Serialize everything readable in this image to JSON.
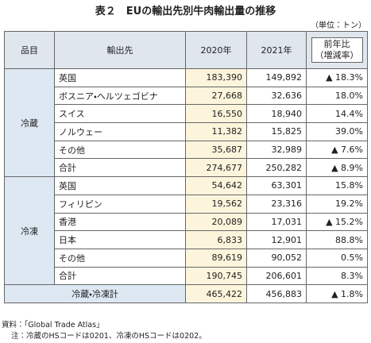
{
  "title": "表２　EUの輸出先別牛肉輸出量の推移",
  "unit": "（単位：トン）",
  "table": {
    "header": [
      "品目",
      "輸出先",
      "2020年",
      "2021年",
      [
        "前年比",
        "（増減率）"
      ]
    ],
    "groups": [
      {
        "name": "冷蔵",
        "rows": [
          [
            "英国",
            "183,390",
            "149,892",
            "▲ 18.3%"
          ],
          [
            "ボスニア・ヘルツェゴビナ",
            "27,668",
            "32,636",
            "18.0%"
          ],
          [
            "スイス",
            "16,550",
            "18,940",
            "14.4%"
          ],
          [
            "ノルウェー",
            "11,382",
            "15,825",
            "39.0%"
          ],
          [
            "その他",
            "35,687",
            "32,989",
            "▲ 7.6%"
          ],
          [
            "合計",
            "274,677",
            "250,282",
            "▲ 8.9%"
          ]
        ]
      },
      {
        "name": "冷凍",
        "rows": [
          [
            "英国",
            "54,642",
            "63,301",
            "15.8%"
          ],
          [
            "フィリピン",
            "19,562",
            "23,316",
            "19.2%"
          ],
          [
            "香港",
            "20,089",
            "17,031",
            "▲ 15.2%"
          ],
          [
            "日本",
            "6,833",
            "12,901",
            "88.8%"
          ],
          [
            "その他",
            "89,619",
            "90,052",
            "0.5%"
          ],
          [
            "合計",
            "190,745",
            "206,601",
            "8.3%"
          ]
        ]
      }
    ],
    "total": [
      "冷蔵・冷凍計",
      "465,422",
      "456,883",
      "▲ 1.8%"
    ]
  },
  "notes": [
    "資料：「Global Trade Atlas」",
    "注：冷蔵のHSコードは0201、冷凍のHSコードは0202。"
  ]
}
